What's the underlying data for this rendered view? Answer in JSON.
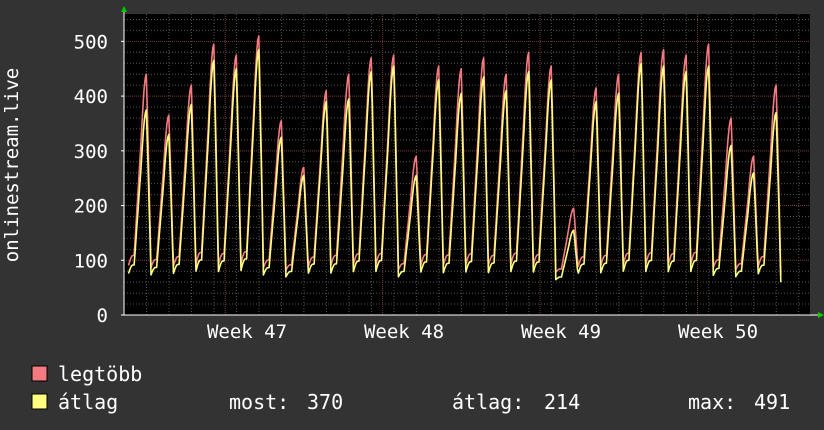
{
  "chart_data": {
    "type": "line",
    "ylabel": "onlinestream.live",
    "ylim": [
      0,
      550
    ],
    "yticks": [
      0,
      100,
      200,
      300,
      400,
      500
    ],
    "xlabels": [
      "Week 47",
      "Week 48",
      "Week 49",
      "Week 50"
    ],
    "grid": true,
    "legend_placement": "bottom-left",
    "x_unit": "days",
    "x_range": [
      0,
      30.5
    ],
    "series": [
      {
        "name": "legtöbb",
        "color": "#f57a80",
        "daily_peaks": [
          440,
          365,
          420,
          495,
          475,
          510,
          355,
          270,
          410,
          440,
          470,
          475,
          290,
          455,
          450,
          470,
          440,
          480,
          455,
          195,
          415,
          440,
          480,
          485,
          475,
          495,
          360,
          290,
          420
        ]
      },
      {
        "name": "átlag",
        "color": "#ffff80",
        "daily_peaks": [
          375,
          330,
          385,
          465,
          450,
          485,
          325,
          255,
          390,
          395,
          445,
          455,
          255,
          430,
          405,
          435,
          410,
          445,
          430,
          155,
          390,
          405,
          460,
          455,
          445,
          455,
          310,
          260,
          370
        ]
      }
    ],
    "daily_min": 60,
    "stats": {
      "most_label": "most:",
      "most_value": "370",
      "atlag_label": "átlag:",
      "atlag_value": "214",
      "max_label": "max:",
      "max_value": "491"
    }
  },
  "colors": {
    "background": "#333333",
    "plot_background": "#000000",
    "grid_minor": "#555555",
    "grid_major": "#7a3a3a",
    "axis": "#ffffff",
    "arrow": "#00cc00"
  }
}
